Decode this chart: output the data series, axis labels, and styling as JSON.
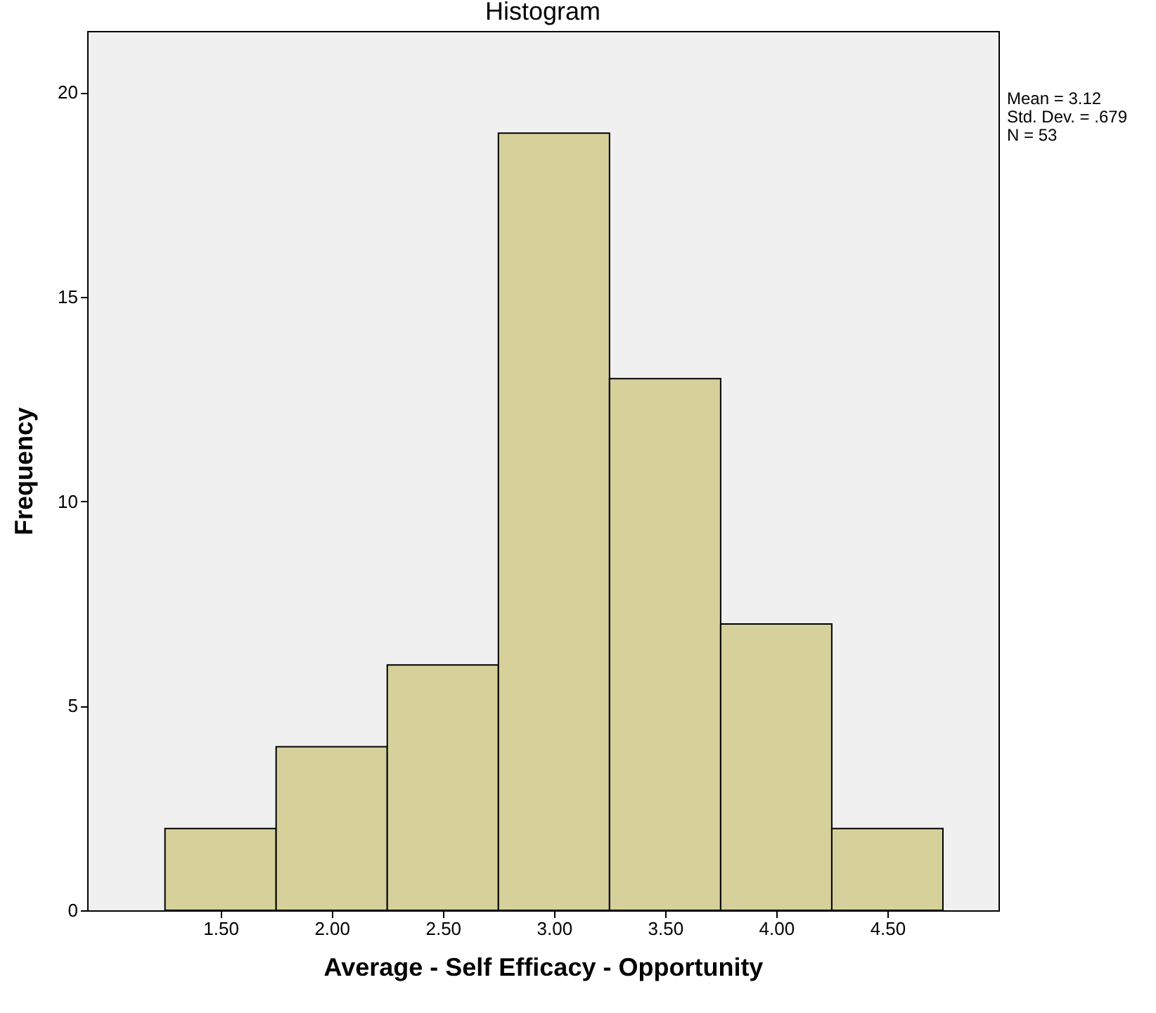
{
  "chart_data": {
    "type": "histogram",
    "title": "Histogram",
    "xlabel": "Average - Self Efficacy - Opportunity",
    "ylabel": "Frequency",
    "bins": [
      1.25,
      1.75,
      2.25,
      2.75,
      3.25,
      3.75,
      4.25,
      4.75
    ],
    "values": [
      2,
      4,
      6,
      19,
      13,
      7,
      2
    ],
    "color": "#d6d09a",
    "xlim": [
      0.9,
      5.0
    ],
    "xticks": [
      {
        "value": 1.5,
        "label": "1.50"
      },
      {
        "value": 2,
        "label": "2.00"
      },
      {
        "value": 2.5,
        "label": "2.50"
      },
      {
        "value": 3,
        "label": "3.00"
      },
      {
        "value": 3.5,
        "label": "3.50"
      },
      {
        "value": 4,
        "label": "4.00"
      },
      {
        "value": 4.5,
        "label": "4.50"
      }
    ],
    "ylim": [
      0,
      21.5
    ],
    "yticks": [
      0,
      5,
      10,
      15,
      20
    ],
    "annotations": [
      "Mean = 3.12",
      "Std. Dev. = .679",
      "N = 53"
    ]
  }
}
